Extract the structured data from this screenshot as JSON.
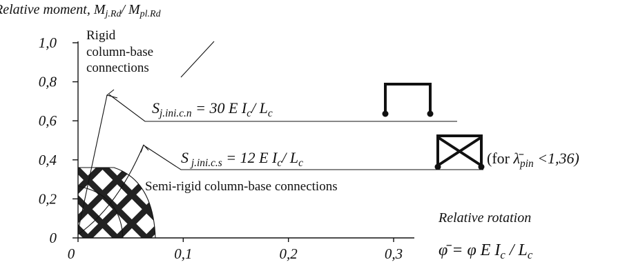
{
  "chart_data": {
    "type": "line",
    "y_title": {
      "parts": [
        {
          "text": "Relative moment,   M"
        },
        {
          "sub": "j.Rd"
        },
        {
          "text": "/ M"
        },
        {
          "sub": "pl.Rd"
        }
      ]
    },
    "x_title": "Relative rotation",
    "x_formula": {
      "parts": [
        {
          "text": "φ̄ = φ E I"
        },
        {
          "sub": "c"
        },
        {
          "text": " / L"
        },
        {
          "sub": "c"
        }
      ]
    },
    "rigid_label": [
      "Rigid",
      "column-base",
      "connections"
    ],
    "nominal_formula": {
      "parts": [
        {
          "text": "S"
        },
        {
          "sub": "j.ini.c.n"
        },
        {
          "text": "  = 30 E I"
        },
        {
          "sub": "c"
        },
        {
          "text": "/ L"
        },
        {
          "sub": "c"
        }
      ]
    },
    "sway_formula": {
      "parts": [
        {
          "text": "S"
        },
        {
          "sub": "  j.ini.c.s"
        },
        {
          "text": " = 12 E I"
        },
        {
          "sub": "c"
        },
        {
          "text": "/ L"
        },
        {
          "sub": "c"
        }
      ]
    },
    "sway_condition": {
      "parts": [
        {
          "text": "(for "
        },
        {
          "text": "λ̄"
        },
        {
          "sub": "pin"
        },
        {
          "text": " <1,36)"
        }
      ]
    },
    "semi_rigid_label": "Semi-rigid column-base connections",
    "xlim": [
      0,
      0.3
    ],
    "ylim": [
      0,
      1.0
    ],
    "xticks": [
      0,
      {
        "value": 0.1,
        "label": "0,1"
      },
      {
        "value": 0.2,
        "label": "0,2"
      },
      {
        "value": 0.3,
        "label": "0,3"
      }
    ],
    "yticks": [
      0,
      {
        "value": 0.2,
        "label": "0,2"
      },
      {
        "value": 0.4,
        "label": "0,4"
      },
      {
        "value": 0.6,
        "label": "0,6"
      },
      {
        "value": 0.8,
        "label": "0,8"
      },
      {
        "value": 1.0,
        "label": "1,0"
      }
    ]
  }
}
